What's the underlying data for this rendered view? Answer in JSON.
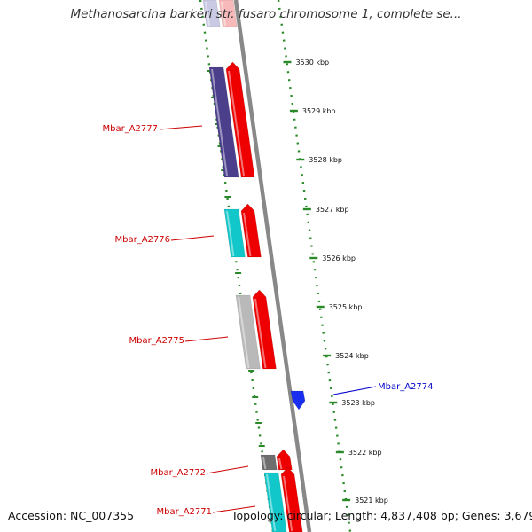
{
  "title": "Methanosarcina barkeri str. fusaro chromosome 1, complete se...",
  "footer": {
    "accession": "Accession: NC_007355",
    "topology": "Topology: circular; Length: 4,837,408 bp; Genes: 3,679"
  },
  "scale": {
    "ticks": [
      {
        "label": "3530 kbp"
      },
      {
        "label": "3529 kbp"
      },
      {
        "label": "3528 kbp"
      },
      {
        "label": "3527 kbp"
      },
      {
        "label": "3526 kbp"
      },
      {
        "label": "3525 kbp"
      },
      {
        "label": "3524 kbp"
      },
      {
        "label": "3523 kbp"
      },
      {
        "label": "3522 kbp"
      },
      {
        "label": "3521 kbp"
      }
    ]
  },
  "genes": [
    {
      "label": "Mbar_A2777",
      "color": "#4b3f8c",
      "strand": "reverse"
    },
    {
      "label": "Mbar_A2776",
      "color": "#12c7c9",
      "strand": "reverse"
    },
    {
      "label": "Mbar_A2775",
      "color": "#b9b9b9",
      "strand": "reverse"
    },
    {
      "label": "Mbar_A2774",
      "color": "#1a2ef0",
      "strand": "forward"
    },
    {
      "label": "Mbar_A2772",
      "color": "#6e6e6e",
      "strand": "reverse"
    },
    {
      "label": "Mbar_A2771",
      "color": "#12c7c9",
      "strand": "reverse"
    }
  ],
  "colors": {
    "reverse_label": "#cc0000",
    "forward_label": "#0000cc",
    "strand_arrow": "#ee0000",
    "backbone": "#888888",
    "tick_dots": "#2a8a2a"
  }
}
